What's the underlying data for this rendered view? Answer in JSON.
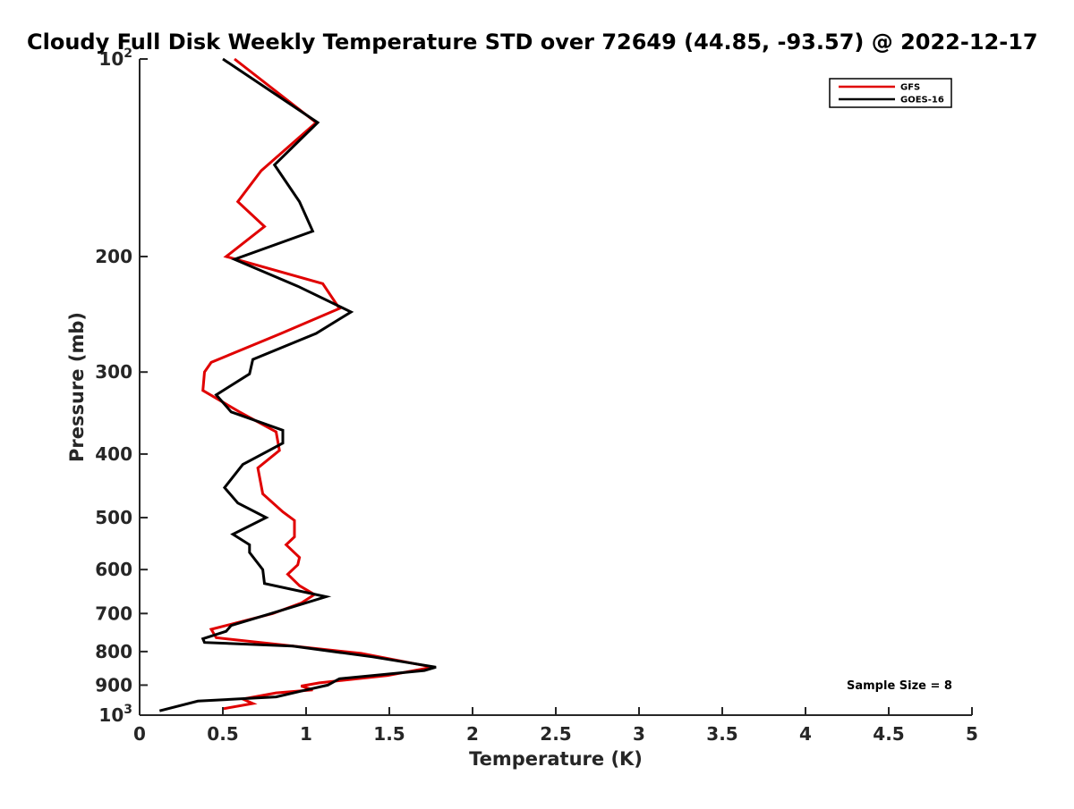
{
  "chart_data": {
    "type": "line",
    "title": "Cloudy Full Disk Weekly Temperature STD over 72649 (44.85, -93.57) @ 2022-12-17",
    "xlabel": "Temperature (K)",
    "ylabel": "Pressure (mb)",
    "xlim": [
      0,
      5
    ],
    "ylim": [
      100,
      1000
    ],
    "y_scale": "log",
    "y_reversed": true,
    "x_ticks": [
      "0",
      "0.5",
      "1",
      "1.5",
      "2",
      "2.5",
      "3",
      "3.5",
      "4",
      "4.5",
      "5"
    ],
    "x_tick_values": [
      0,
      0.5,
      1,
      1.5,
      2,
      2.5,
      3,
      3.5,
      4,
      4.5,
      5
    ],
    "y_ticks": [
      {
        "value": 100,
        "label": "10",
        "sup": "2"
      },
      {
        "value": 200,
        "label": "200",
        "sup": ""
      },
      {
        "value": 300,
        "label": "300",
        "sup": ""
      },
      {
        "value": 400,
        "label": "400",
        "sup": ""
      },
      {
        "value": 500,
        "label": "500",
        "sup": ""
      },
      {
        "value": 600,
        "label": "600",
        "sup": ""
      },
      {
        "value": 700,
        "label": "700",
        "sup": ""
      },
      {
        "value": 800,
        "label": "800",
        "sup": ""
      },
      {
        "value": 900,
        "label": "900",
        "sup": ""
      },
      {
        "value": 1000,
        "label": "10",
        "sup": "3"
      }
    ],
    "grid": false,
    "legend_position": "top-right",
    "annotation": "Sample Size = 8",
    "series": [
      {
        "name": "GFS",
        "color": "#e00000",
        "points": [
          [
            0.57,
            100
          ],
          [
            1.06,
            125
          ],
          [
            0.73,
            148
          ],
          [
            0.59,
            165
          ],
          [
            0.75,
            180
          ],
          [
            0.52,
            200
          ],
          [
            1.1,
            220
          ],
          [
            1.2,
            240
          ],
          [
            0.85,
            262
          ],
          [
            0.43,
            290
          ],
          [
            0.39,
            300
          ],
          [
            0.38,
            320
          ],
          [
            0.6,
            345
          ],
          [
            0.82,
            370
          ],
          [
            0.84,
            395
          ],
          [
            0.71,
            420
          ],
          [
            0.74,
            460
          ],
          [
            0.86,
            490
          ],
          [
            0.93,
            505
          ],
          [
            0.93,
            535
          ],
          [
            0.88,
            550
          ],
          [
            0.96,
            575
          ],
          [
            0.95,
            590
          ],
          [
            0.89,
            610
          ],
          [
            0.96,
            635
          ],
          [
            1.05,
            655
          ],
          [
            0.97,
            675
          ],
          [
            0.8,
            700
          ],
          [
            0.43,
            740
          ],
          [
            0.46,
            762
          ],
          [
            1.33,
            805
          ],
          [
            1.76,
            845
          ],
          [
            1.49,
            870
          ],
          [
            1.08,
            893
          ],
          [
            0.97,
            903
          ],
          [
            1.04,
            915
          ],
          [
            0.82,
            925
          ],
          [
            0.62,
            945
          ],
          [
            0.68,
            960
          ],
          [
            0.5,
            978
          ]
        ]
      },
      {
        "name": "GOES-16",
        "color": "#000000",
        "points": [
          [
            0.5,
            100
          ],
          [
            1.07,
            125
          ],
          [
            0.81,
            145
          ],
          [
            0.96,
            165
          ],
          [
            1.04,
            183
          ],
          [
            0.57,
            202
          ],
          [
            0.95,
            222
          ],
          [
            1.27,
            243
          ],
          [
            1.06,
            262
          ],
          [
            0.68,
            287
          ],
          [
            0.66,
            302
          ],
          [
            0.46,
            325
          ],
          [
            0.55,
            345
          ],
          [
            0.86,
            368
          ],
          [
            0.86,
            385
          ],
          [
            0.62,
            415
          ],
          [
            0.51,
            450
          ],
          [
            0.59,
            475
          ],
          [
            0.76,
            500
          ],
          [
            0.56,
            530
          ],
          [
            0.66,
            550
          ],
          [
            0.66,
            565
          ],
          [
            0.74,
            600
          ],
          [
            0.75,
            630
          ],
          [
            1.12,
            660
          ],
          [
            0.79,
            700
          ],
          [
            0.55,
            730
          ],
          [
            0.52,
            745
          ],
          [
            0.38,
            765
          ],
          [
            0.39,
            775
          ],
          [
            0.92,
            785
          ],
          [
            1.4,
            815
          ],
          [
            1.78,
            845
          ],
          [
            1.71,
            855
          ],
          [
            1.2,
            880
          ],
          [
            1.13,
            900
          ],
          [
            0.98,
            918
          ],
          [
            0.82,
            938
          ],
          [
            0.35,
            952
          ],
          [
            0.12,
            985
          ]
        ]
      }
    ]
  }
}
